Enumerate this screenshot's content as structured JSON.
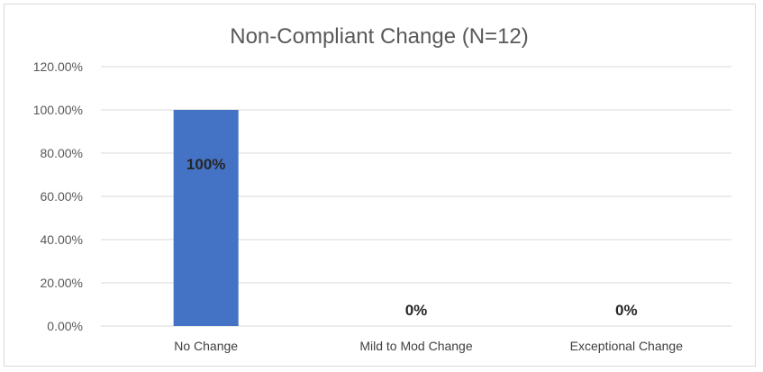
{
  "chart_data": {
    "type": "bar",
    "title": "Non-Compliant Change (N=12)",
    "categories": [
      "No Change",
      "Mild to Mod Change",
      "Exceptional Change"
    ],
    "values": [
      100,
      0,
      0
    ],
    "data_labels": [
      "100%",
      "0%",
      "0%"
    ],
    "y_ticks": [
      "0.00%",
      "20.00%",
      "40.00%",
      "60.00%",
      "80.00%",
      "100.00%",
      "120.00%"
    ],
    "ylim": [
      0,
      120
    ],
    "grid": true,
    "bar_color": "#4472c4",
    "gridline_color": "#d9d9d9",
    "legend": "none"
  }
}
